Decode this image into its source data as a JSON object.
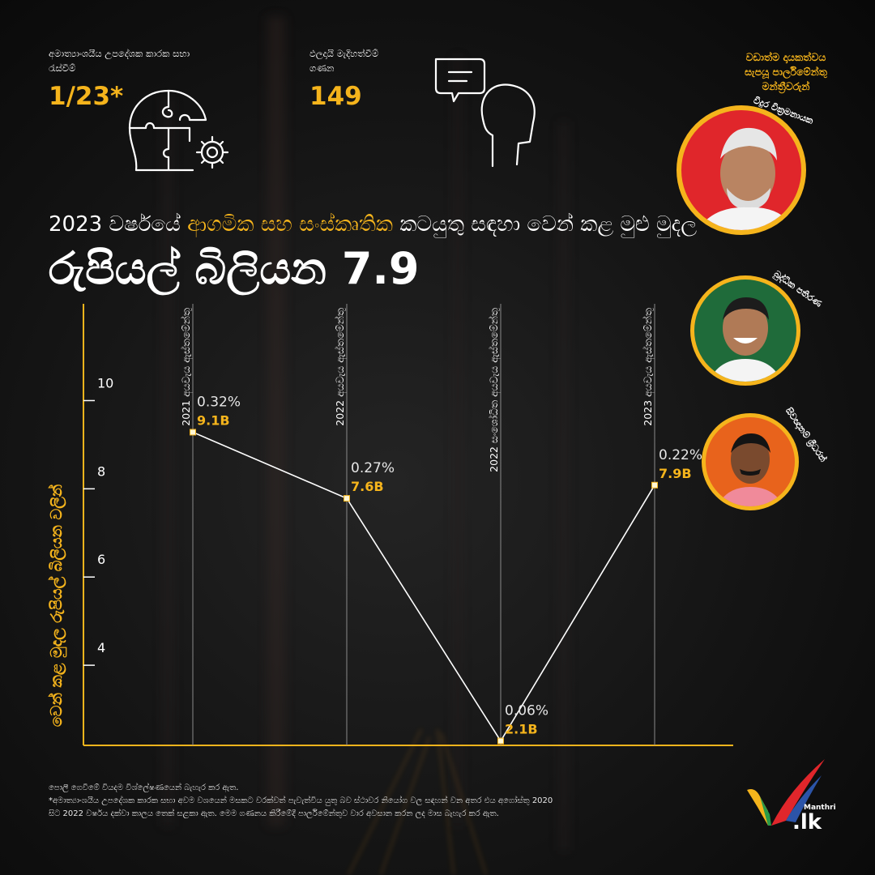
{
  "stats": [
    {
      "label_line1": "අමාත්‍යාංශයීය උපදේශක කාරක සභා",
      "label_line2": "රැස්වීම්",
      "value": "1/23*",
      "icon": "puzzle-head-gear-icon"
    },
    {
      "label_line1": "ඵලදායි මැදිහත්වීම්",
      "label_line2": "ගණන",
      "value": "149",
      "icon": "head-speech-bubble-icon"
    }
  ],
  "mp_section": {
    "heading_line1": "වඩාත්ම දායකත්වය",
    "heading_line2": "සැපයූ පාර්ලිමේන්තු",
    "heading_line3": "මන්ත්‍රීවරුන්",
    "mps": [
      {
        "name": "විදුර වික්‍රමනායක",
        "ring": "#f5b41c",
        "bg": "#e0262b"
      },
      {
        "name": "බුද්ධික පතිරණ",
        "ring": "#f5b41c",
        "bg": "#1f6b3a"
      },
      {
        "name": "සිවඥානම් ශ්‍රීධරන්",
        "ring": "#f5b41c",
        "bg": "#e8631c"
      }
    ]
  },
  "headline": {
    "prefix": "2023 වර්ෂයේ",
    "accent": "ආගමික සහ සංස්කෘතික",
    "suffix": "කටයුතු සඳහා වෙන් කළ මුළු මුදල",
    "big": "රුපියල් බිලියන 7.9"
  },
  "chart_data": {
    "type": "line",
    "ylabel": "වෙන් කළ මුදල රුපියල් බිලියන වලින්",
    "ylim": [
      2,
      11
    ],
    "yticks": [
      4,
      6,
      8,
      10
    ],
    "categories": [
      "2021 අයවැය ඇස්තමේන්තු",
      "2022 අයවැය ඇස්තමේන්තු",
      "2022 සංශෝධිත අයවැය ඇස්තමේන්තු",
      "2023 අයවැය ඇස්තමේන්තු"
    ],
    "series": [
      {
        "values": [
          9.1,
          7.6,
          2.1,
          7.9
        ]
      }
    ],
    "percent_labels": [
      "0.32%",
      "0.27%",
      "0.06%",
      "0.22%"
    ],
    "value_labels": [
      "9.1B",
      "7.6B",
      "2.1B",
      "7.9B"
    ],
    "colors": {
      "line": "#ffffff",
      "axis": "#f5b41c",
      "value_label": "#f5b41c"
    }
  },
  "footer": {
    "line1": "පොලී ගෙවීමේ වියදම විශ්ලේෂණයෙන් බැහැර කර ඇත.",
    "line2": "*අමාත්‍යාංශයීය උපදේශක කාරක සභා අවම වශයෙන් මසකට වරක්වත් පැවැත්විය යුතු බව ස්ථාවර නියෝග වල සඳහන් වන අතර එය අගෝස්තු 2020",
    "line3": "සිට 2022 වර්ෂය දක්වා කාලය තෙක් සළකා ඇත. මෙම ගණනය කිරීමේදී පාර්ලිමේන්තුව වාර අවසාන කරන ලද මාස බැහැර කර ඇත."
  },
  "logo": {
    "small": "Manthri",
    "main": ".lk"
  }
}
